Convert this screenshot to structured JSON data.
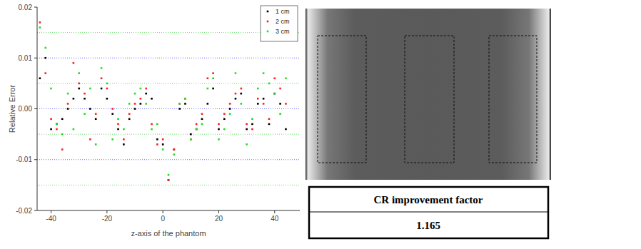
{
  "chart_data": {
    "type": "scatter",
    "x_label": "z-axis of the phantom",
    "y_label": "Relative Error",
    "x": [
      -44,
      -42,
      -40,
      -38,
      -36,
      -34,
      -32,
      -30,
      -28,
      -26,
      -24,
      -22,
      -20,
      -18,
      -16,
      -14,
      -12,
      -10,
      -8,
      -6,
      -4,
      -2,
      0,
      2,
      4,
      6,
      8,
      10,
      12,
      14,
      16,
      18,
      20,
      22,
      24,
      26,
      28,
      30,
      32,
      34,
      36,
      38,
      40,
      42,
      44
    ],
    "series": [
      {
        "name": "1 cm",
        "color": "#000000",
        "values": [
          0.006,
          0.01,
          -0.004,
          -0.003,
          -0.002,
          0.0,
          0.002,
          0.004,
          0.002,
          0.0,
          -0.002,
          0.004,
          0.002,
          -0.001,
          -0.004,
          -0.007,
          -0.002,
          0.0,
          0.001,
          0.003,
          0.002,
          -0.006,
          -0.007,
          -0.014,
          -0.008,
          0.0,
          0.001,
          -0.005,
          -0.004,
          -0.002,
          0.001,
          0.004,
          -0.004,
          -0.002,
          0.0,
          0.002,
          0.003,
          -0.004,
          -0.003,
          0.001,
          0.002,
          -0.003,
          0.003,
          0.001,
          -0.004
        ]
      },
      {
        "name": "2 cm",
        "color": "#ff2020",
        "values": [
          0.017,
          0.007,
          -0.002,
          -0.004,
          -0.008,
          0.001,
          0.009,
          0.005,
          0.003,
          -0.006,
          -0.001,
          0.006,
          0.004,
          0.0,
          -0.003,
          -0.006,
          -0.001,
          0.001,
          0.002,
          0.004,
          -0.003,
          -0.007,
          -0.006,
          -0.014,
          -0.008,
          0.001,
          0.002,
          -0.006,
          -0.003,
          -0.001,
          0.006,
          0.007,
          -0.003,
          -0.001,
          0.001,
          0.003,
          0.004,
          -0.003,
          -0.004,
          0.002,
          0.001,
          -0.002,
          0.006,
          0.004,
          0.001
        ]
      },
      {
        "name": "3 cm",
        "color": "#22dd22",
        "values": [
          0.016,
          0.012,
          0.004,
          -0.003,
          -0.005,
          0.003,
          -0.004,
          0.007,
          -0.001,
          0.004,
          -0.007,
          0.008,
          0.005,
          -0.006,
          -0.002,
          -0.004,
          0.001,
          0.003,
          0.004,
          0.001,
          -0.004,
          -0.003,
          -0.008,
          -0.013,
          -0.009,
          0.001,
          0.002,
          -0.006,
          -0.004,
          -0.003,
          0.004,
          0.006,
          -0.006,
          -0.004,
          -0.001,
          0.007,
          0.001,
          -0.007,
          -0.002,
          0.004,
          0.007,
          0.005,
          0.003,
          -0.001,
          0.006
        ]
      }
    ],
    "xlim": [
      -45,
      49
    ],
    "xticks": [
      -40,
      -20,
      0,
      20,
      40
    ],
    "ylim": [
      -0.02,
      0.02
    ],
    "yticks": [
      -0.02,
      -0.01,
      {
        "value": 0,
        "label": "0.00"
      },
      0.01,
      0.02
    ],
    "grid": true,
    "legend": "top-right",
    "marker": "square"
  },
  "table": {
    "header": "CR improvement factor",
    "value": "1.165"
  }
}
